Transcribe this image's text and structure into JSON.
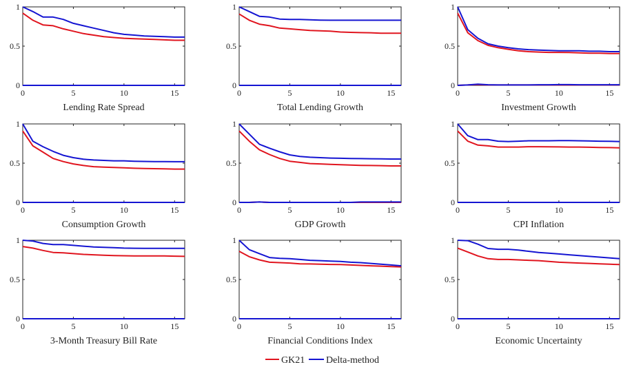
{
  "colors": {
    "gk21": "#e0141e",
    "delta": "#1414d2",
    "axis": "#222222"
  },
  "legend": {
    "position": "bottom-center",
    "items": [
      "GK21",
      "Delta-method"
    ]
  },
  "chart_data": [
    {
      "type": "line",
      "title": "Lending Rate Spread",
      "x": [
        0,
        1,
        2,
        3,
        4,
        5,
        6,
        7,
        8,
        9,
        10,
        11,
        12,
        13,
        14,
        15,
        16
      ],
      "xlim": [
        0,
        16
      ],
      "ylim": [
        0,
        1
      ],
      "xticks": [
        0,
        5,
        10,
        15
      ],
      "yticks": [
        0,
        0.5,
        1
      ],
      "series": [
        {
          "name": "GK21",
          "values": [
            [
              0.92,
              0.83,
              0.77,
              0.76,
              0.72,
              0.69,
              0.66,
              0.64,
              0.62,
              0.61,
              0.6,
              0.595,
              0.59,
              0.585,
              0.58,
              0.575,
              0.575
            ],
            [
              0,
              0,
              0,
              0,
              0,
              0,
              0,
              0,
              0,
              0,
              0,
              0,
              0,
              0,
              0,
              0,
              0
            ]
          ]
        },
        {
          "name": "Delta-method",
          "values": [
            [
              1.0,
              0.94,
              0.87,
              0.87,
              0.84,
              0.79,
              0.76,
              0.73,
              0.7,
              0.67,
              0.65,
              0.64,
              0.63,
              0.625,
              0.62,
              0.615,
              0.615
            ],
            [
              0,
              0,
              0,
              0,
              0,
              0,
              0,
              0,
              0,
              0,
              0,
              0,
              0,
              0,
              0,
              0,
              0
            ]
          ]
        }
      ]
    },
    {
      "type": "line",
      "title": "Total Lending Growth",
      "x": [
        0,
        1,
        2,
        3,
        4,
        5,
        6,
        7,
        8,
        9,
        10,
        11,
        12,
        13,
        14,
        15,
        16
      ],
      "xlim": [
        0,
        16
      ],
      "ylim": [
        0,
        1
      ],
      "xticks": [
        0,
        5,
        10,
        15
      ],
      "yticks": [
        0,
        0.5,
        1
      ],
      "series": [
        {
          "name": "GK21",
          "values": [
            [
              0.91,
              0.83,
              0.78,
              0.76,
              0.73,
              0.72,
              0.71,
              0.7,
              0.695,
              0.69,
              0.68,
              0.675,
              0.672,
              0.67,
              0.665,
              0.665,
              0.665
            ],
            [
              0,
              0,
              0,
              0,
              0,
              0,
              0,
              0,
              0,
              0,
              0,
              0,
              0,
              0,
              0,
              0,
              0
            ]
          ]
        },
        {
          "name": "Delta-method",
          "values": [
            [
              1.0,
              0.94,
              0.88,
              0.87,
              0.845,
              0.84,
              0.84,
              0.835,
              0.832,
              0.83,
              0.83,
              0.83,
              0.83,
              0.83,
              0.83,
              0.83,
              0.83
            ],
            [
              0,
              0,
              0,
              0,
              0,
              0,
              0,
              0,
              0,
              0,
              0,
              0,
              0,
              0,
              0,
              0,
              0
            ]
          ]
        }
      ]
    },
    {
      "type": "line",
      "title": "Investment Growth",
      "x": [
        0,
        1,
        2,
        3,
        4,
        5,
        6,
        7,
        8,
        9,
        10,
        11,
        12,
        13,
        14,
        15,
        16
      ],
      "xlim": [
        0,
        16
      ],
      "ylim": [
        0,
        1
      ],
      "xticks": [
        0,
        5,
        10,
        15
      ],
      "yticks": [
        0,
        0.5,
        1
      ],
      "series": [
        {
          "name": "GK21",
          "values": [
            [
              0.92,
              0.67,
              0.57,
              0.51,
              0.48,
              0.46,
              0.44,
              0.43,
              0.425,
              0.42,
              0.42,
              0.418,
              0.415,
              0.41,
              0.41,
              0.405,
              0.405
            ],
            [
              0,
              0.005,
              0.01,
              0.005,
              0.005,
              0.005,
              0.005,
              0.005,
              0.005,
              0.005,
              0.005,
              0.005,
              0.005,
              0.005,
              0.005,
              0.005,
              0.005
            ]
          ]
        },
        {
          "name": "Delta-method",
          "values": [
            [
              1.0,
              0.71,
              0.6,
              0.53,
              0.5,
              0.48,
              0.465,
              0.455,
              0.45,
              0.445,
              0.44,
              0.44,
              0.44,
              0.435,
              0.435,
              0.43,
              0.43
            ],
            [
              0,
              0.005,
              0.015,
              0.008,
              0.005,
              0.005,
              0.005,
              0.005,
              0.008,
              0.008,
              0.01,
              0.01,
              0.008,
              0.008,
              0.008,
              0.008,
              0.008
            ]
          ]
        }
      ]
    },
    {
      "type": "line",
      "title": "Consumption Growth",
      "x": [
        0,
        1,
        2,
        3,
        4,
        5,
        6,
        7,
        8,
        9,
        10,
        11,
        12,
        13,
        14,
        15,
        16
      ],
      "xlim": [
        0,
        16
      ],
      "ylim": [
        0,
        1
      ],
      "xticks": [
        0,
        5,
        10,
        15
      ],
      "yticks": [
        0,
        0.5,
        1
      ],
      "series": [
        {
          "name": "GK21",
          "values": [
            [
              0.91,
              0.72,
              0.64,
              0.56,
              0.52,
              0.49,
              0.47,
              0.455,
              0.45,
              0.445,
              0.44,
              0.435,
              0.432,
              0.43,
              0.428,
              0.425,
              0.425
            ],
            [
              0,
              0,
              0,
              0,
              0,
              0,
              0,
              0,
              0,
              0,
              0,
              0,
              0,
              0,
              0,
              0,
              0
            ]
          ]
        },
        {
          "name": "Delta-method",
          "values": [
            [
              1.0,
              0.78,
              0.71,
              0.65,
              0.6,
              0.57,
              0.55,
              0.54,
              0.535,
              0.53,
              0.53,
              0.525,
              0.522,
              0.52,
              0.52,
              0.518,
              0.518
            ],
            [
              0,
              0,
              0,
              0,
              0,
              0,
              0,
              0,
              0,
              0,
              0,
              0,
              0,
              0,
              0,
              0,
              0
            ]
          ]
        }
      ]
    },
    {
      "type": "line",
      "title": "GDP Growth",
      "x": [
        0,
        1,
        2,
        3,
        4,
        5,
        6,
        7,
        8,
        9,
        10,
        11,
        12,
        13,
        14,
        15,
        16
      ],
      "xlim": [
        0,
        16
      ],
      "ylim": [
        0,
        1
      ],
      "xticks": [
        0,
        5,
        10,
        15
      ],
      "yticks": [
        0,
        0.5,
        1
      ],
      "series": [
        {
          "name": "GK21",
          "values": [
            [
              0.91,
              0.78,
              0.67,
              0.61,
              0.56,
              0.525,
              0.51,
              0.495,
              0.49,
              0.485,
              0.48,
              0.475,
              0.472,
              0.47,
              0.468,
              0.465,
              0.465
            ],
            [
              0,
              0,
              0.005,
              0,
              0,
              0,
              0,
              0,
              0,
              0,
              0,
              0,
              0,
              0,
              0,
              0,
              0
            ]
          ]
        },
        {
          "name": "Delta-method",
          "values": [
            [
              1.0,
              0.87,
              0.74,
              0.69,
              0.645,
              0.605,
              0.585,
              0.575,
              0.57,
              0.565,
              0.562,
              0.56,
              0.558,
              0.556,
              0.555,
              0.553,
              0.553
            ],
            [
              0,
              0,
              0.005,
              0,
              0,
              0,
              0,
              0,
              0,
              0,
              0,
              0,
              0.005,
              0.005,
              0.005,
              0.005,
              0.005
            ]
          ]
        }
      ]
    },
    {
      "type": "line",
      "title": "CPI Inflation",
      "x": [
        0,
        1,
        2,
        3,
        4,
        5,
        6,
        7,
        8,
        9,
        10,
        11,
        12,
        13,
        14,
        15,
        16
      ],
      "xlim": [
        0,
        16
      ],
      "ylim": [
        0,
        1
      ],
      "xticks": [
        0,
        5,
        10,
        15
      ],
      "yticks": [
        0,
        0.5,
        1
      ],
      "series": [
        {
          "name": "GK21",
          "values": [
            [
              0.91,
              0.78,
              0.73,
              0.72,
              0.705,
              0.705,
              0.705,
              0.71,
              0.71,
              0.708,
              0.707,
              0.705,
              0.705,
              0.703,
              0.7,
              0.698,
              0.695
            ],
            [
              0,
              0,
              0,
              0,
              0,
              0,
              0,
              0,
              0,
              0,
              0,
              0,
              0,
              0,
              0,
              0,
              0
            ]
          ]
        },
        {
          "name": "Delta-method",
          "values": [
            [
              1.0,
              0.85,
              0.8,
              0.8,
              0.78,
              0.775,
              0.78,
              0.785,
              0.785,
              0.785,
              0.787,
              0.787,
              0.785,
              0.783,
              0.78,
              0.778,
              0.775
            ],
            [
              0,
              0,
              0,
              0,
              0,
              0,
              0,
              0,
              0,
              0,
              0,
              0,
              0,
              0,
              0,
              0,
              0
            ]
          ]
        }
      ]
    },
    {
      "type": "line",
      "title": "3-Month Treasury Bill Rate",
      "x": [
        0,
        1,
        2,
        3,
        4,
        5,
        6,
        7,
        8,
        9,
        10,
        11,
        12,
        13,
        14,
        15,
        16
      ],
      "xlim": [
        0,
        16
      ],
      "ylim": [
        0,
        1
      ],
      "xticks": [
        0,
        5,
        10,
        15
      ],
      "yticks": [
        0,
        0.5,
        1
      ],
      "series": [
        {
          "name": "GK21",
          "values": [
            [
              0.92,
              0.9,
              0.87,
              0.845,
              0.84,
              0.83,
              0.82,
              0.815,
              0.81,
              0.805,
              0.803,
              0.8,
              0.8,
              0.8,
              0.8,
              0.797,
              0.795
            ],
            [
              0,
              0,
              0,
              0,
              0,
              0,
              0,
              0,
              0,
              0,
              0,
              0,
              0,
              0,
              0,
              0,
              0
            ]
          ]
        },
        {
          "name": "Delta-method",
          "values": [
            [
              1.0,
              0.99,
              0.96,
              0.945,
              0.945,
              0.935,
              0.925,
              0.915,
              0.91,
              0.905,
              0.9,
              0.898,
              0.897,
              0.897,
              0.897,
              0.897,
              0.897
            ],
            [
              0,
              0,
              0,
              0,
              0,
              0,
              0,
              0,
              0,
              0,
              0,
              0,
              0,
              0,
              0,
              0,
              0
            ]
          ]
        }
      ]
    },
    {
      "type": "line",
      "title": "Financial Conditions Index",
      "x": [
        0,
        1,
        2,
        3,
        4,
        5,
        6,
        7,
        8,
        9,
        10,
        11,
        12,
        13,
        14,
        15,
        16
      ],
      "xlim": [
        0,
        16
      ],
      "ylim": [
        0,
        1
      ],
      "xticks": [
        0,
        5,
        10,
        15
      ],
      "yticks": [
        0,
        0.5,
        1
      ],
      "series": [
        {
          "name": "GK21",
          "values": [
            [
              0.86,
              0.79,
              0.75,
              0.72,
              0.715,
              0.71,
              0.7,
              0.698,
              0.695,
              0.692,
              0.69,
              0.685,
              0.68,
              0.675,
              0.67,
              0.665,
              0.66
            ],
            [
              0,
              0,
              0,
              0,
              0,
              0,
              0,
              0,
              0,
              0,
              0,
              0,
              0,
              0,
              0,
              0,
              0
            ]
          ]
        },
        {
          "name": "Delta-method",
          "values": [
            [
              1.0,
              0.88,
              0.83,
              0.78,
              0.77,
              0.765,
              0.755,
              0.745,
              0.74,
              0.735,
              0.73,
              0.72,
              0.715,
              0.705,
              0.695,
              0.685,
              0.675
            ],
            [
              0,
              0,
              0,
              0,
              0,
              0,
              0,
              0,
              0,
              0,
              0,
              0,
              0,
              0,
              0,
              0,
              0
            ]
          ]
        }
      ]
    },
    {
      "type": "line",
      "title": "Economic Uncertainty",
      "x": [
        0,
        1,
        2,
        3,
        4,
        5,
        6,
        7,
        8,
        9,
        10,
        11,
        12,
        13,
        14,
        15,
        16
      ],
      "xlim": [
        0,
        16
      ],
      "ylim": [
        0,
        1
      ],
      "xticks": [
        0,
        5,
        10,
        15
      ],
      "yticks": [
        0,
        0.5,
        1
      ],
      "series": [
        {
          "name": "GK21",
          "values": [
            [
              0.9,
              0.85,
              0.8,
              0.765,
              0.755,
              0.755,
              0.75,
              0.745,
              0.74,
              0.73,
              0.72,
              0.715,
              0.71,
              0.705,
              0.7,
              0.695,
              0.69
            ],
            [
              0,
              0,
              0,
              0,
              0,
              0,
              0,
              0,
              0,
              0,
              0,
              0,
              0,
              0,
              0,
              0,
              0
            ]
          ]
        },
        {
          "name": "Delta-method",
          "values": [
            [
              1.0,
              0.995,
              0.95,
              0.895,
              0.885,
              0.885,
              0.875,
              0.86,
              0.845,
              0.835,
              0.825,
              0.815,
              0.805,
              0.795,
              0.785,
              0.775,
              0.765
            ],
            [
              0,
              0,
              0,
              0,
              0,
              0,
              0,
              0,
              0,
              0,
              0,
              0,
              0,
              0,
              0,
              0,
              0
            ]
          ]
        }
      ]
    }
  ]
}
